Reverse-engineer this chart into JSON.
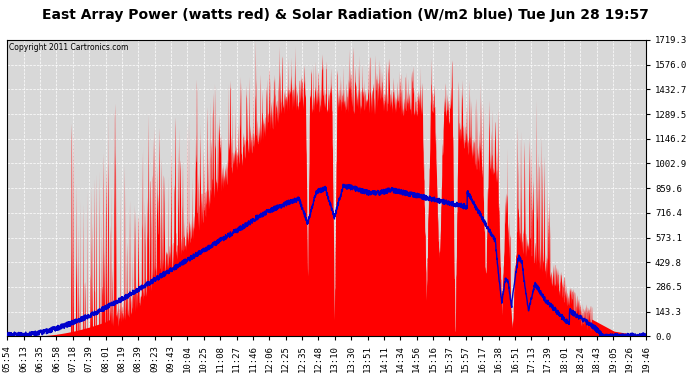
{
  "title": "East Array Power (watts red) & Solar Radiation (W/m2 blue) Tue Jun 28 19:57",
  "copyright": "Copyright 2011 Cartronics.com",
  "ymin": 0.0,
  "ymax": 1719.3,
  "yticks": [
    0.0,
    143.3,
    286.5,
    429.8,
    573.1,
    716.4,
    859.6,
    1002.9,
    1146.2,
    1289.5,
    1432.7,
    1576.0,
    1719.3
  ],
  "xtick_labels": [
    "05:54",
    "06:13",
    "06:35",
    "06:58",
    "07:18",
    "07:39",
    "08:01",
    "08:19",
    "08:39",
    "09:23",
    "09:43",
    "10:04",
    "10:25",
    "11:08",
    "11:27",
    "11:46",
    "12:06",
    "12:25",
    "12:35",
    "12:48",
    "13:10",
    "13:30",
    "13:51",
    "14:11",
    "14:34",
    "14:56",
    "15:16",
    "15:37",
    "15:57",
    "16:17",
    "16:38",
    "16:51",
    "17:13",
    "17:39",
    "18:01",
    "18:24",
    "18:43",
    "19:05",
    "19:26",
    "19:46"
  ],
  "bg_color": "#ffffff",
  "plot_bg_color": "#d8d8d8",
  "grid_color": "#ffffff",
  "red_color": "#ff0000",
  "blue_color": "#0000cc",
  "title_fontsize": 10,
  "tick_fontsize": 6.5
}
